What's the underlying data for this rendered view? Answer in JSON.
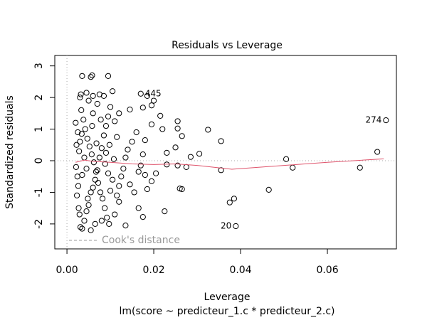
{
  "chart_data": {
    "type": "scatter",
    "title": "Residuals vs Leverage",
    "x_label": "Leverage",
    "y_label": "Standardized residuals",
    "subtitle": "lm(score ~ predicteur_1.c * predicteur_2.c)",
    "legend": "Cook's distance",
    "xlim": [
      -0.0028,
      0.0759
    ],
    "ylim": [
      -2.79,
      3.33
    ],
    "xticks": [
      {
        "value": 0,
        "label": "0.00"
      },
      {
        "value": 0.02,
        "label": "0.02"
      },
      {
        "value": 0.04,
        "label": "0.04"
      },
      {
        "value": 0.06,
        "label": "0.06"
      }
    ],
    "yticks": [
      -2,
      -1,
      0,
      1,
      2,
      3
    ],
    "x": [
      0.0035,
      0.0055,
      0.0058,
      0.0095,
      0.003,
      0.0032,
      0.0045,
      0.006,
      0.0075,
      0.0085,
      0.0105,
      0.017,
      0.0185,
      0.02,
      0.0195,
      0.0145,
      0.0175,
      0.0215,
      0.0195,
      0.022,
      0.0255,
      0.0255,
      0.0265,
      0.0325,
      0.0355,
      0.025,
      0.023,
      0.0305,
      0.0285,
      0.0505,
      0.0715,
      0.0735,
      0.0255,
      0.023,
      0.0275,
      0.0355,
      0.052,
      0.0675,
      0.018,
      0.0205,
      0.0195,
      0.026,
      0.0265,
      0.0465,
      0.0385,
      0.0375,
      0.0225,
      0.0175,
      0.0135,
      0.0389,
      0.0165,
      0.012,
      0.002,
      0.0025,
      0.0022,
      0.0028,
      0.0021,
      0.0024,
      0.0026,
      0.0023,
      0.0027,
      0.0029,
      0.0031,
      0.0035,
      0.004,
      0.0045,
      0.005,
      0.0055,
      0.006,
      0.0065,
      0.007,
      0.0075,
      0.008,
      0.0085,
      0.009,
      0.0095,
      0.01,
      0.0033,
      0.0038,
      0.0042,
      0.0047,
      0.0052,
      0.0057,
      0.0062,
      0.0067,
      0.0072,
      0.0077,
      0.0082,
      0.0087,
      0.0092,
      0.0097,
      0.011,
      0.0115,
      0.012,
      0.0125,
      0.013,
      0.0135,
      0.014,
      0.015,
      0.016,
      0.011,
      0.0115,
      0.012,
      0.0105,
      0.01,
      0.0145,
      0.0155,
      0.0165,
      0.017,
      0.0175,
      0.018,
      0.0185,
      0.004,
      0.0045,
      0.0035,
      0.003,
      0.005,
      0.006,
      0.007,
      0.008,
      0.0065,
      0.0055,
      0.009,
      0.0095,
      0.0034,
      0.0048,
      0.0058,
      0.0068,
      0.0078,
      0.0088,
      0.0098,
      0.0108
    ],
    "y": [
      2.68,
      2.65,
      2.7,
      2.68,
      2.0,
      2.1,
      2.15,
      2.05,
      2.1,
      2.05,
      2.2,
      2.12,
      2.05,
      1.9,
      1.75,
      1.62,
      1.68,
      1.42,
      1.15,
      1.0,
      1.25,
      1.02,
      0.78,
      0.98,
      0.62,
      0.42,
      0.25,
      0.22,
      0.12,
      0.05,
      0.28,
      1.28,
      -0.15,
      -0.12,
      -0.2,
      -0.3,
      -0.22,
      -0.22,
      -0.45,
      -0.4,
      -0.65,
      -0.88,
      -0.9,
      -0.92,
      -1.2,
      -1.32,
      -1.6,
      -1.78,
      -2.05,
      -2.07,
      -1.5,
      -1.3,
      1.2,
      0.9,
      0.5,
      0.3,
      -0.2,
      -0.5,
      -0.8,
      -1.1,
      -1.5,
      -1.7,
      -2.1,
      -2.15,
      -1.9,
      -1.6,
      -1.4,
      -1.0,
      -0.85,
      -0.6,
      -0.3,
      0.1,
      0.4,
      0.8,
      1.1,
      1.4,
      1.7,
      1.6,
      1.3,
      1.0,
      0.7,
      0.45,
      0.2,
      -0.05,
      -0.35,
      -0.7,
      -1.0,
      -1.2,
      -1.5,
      -1.8,
      -2.0,
      -1.7,
      -1.1,
      -0.8,
      -0.5,
      -0.25,
      0.1,
      0.35,
      0.6,
      0.9,
      1.25,
      0.75,
      1.5,
      -0.6,
      -0.95,
      -0.75,
      -1.0,
      -0.35,
      -0.15,
      0.2,
      0.65,
      -0.9,
      0.1,
      -0.25,
      -0.45,
      0.6,
      1.9,
      1.5,
      1.8,
      -1.9,
      -2.0,
      -2.2,
      0.25,
      -0.4,
      0.85,
      -1.2,
      1.1,
      0.55,
      1.3,
      -0.1,
      0.5,
      0.05
    ],
    "annotations": [
      {
        "text": "445",
        "x": 0.017,
        "y": 2.12
      },
      {
        "text": "274",
        "x": 0.0735,
        "y": 1.28
      },
      {
        "text": "20",
        "x": 0.0389,
        "y": -2.07
      }
    ],
    "smooth": {
      "color": "#df536b",
      "x": [
        0.002,
        0.004,
        0.006,
        0.01,
        0.015,
        0.02,
        0.025,
        0.03,
        0.038,
        0.05,
        0.06,
        0.073
      ],
      "y": [
        -0.05,
        0.02,
        -0.02,
        -0.05,
        -0.1,
        -0.12,
        -0.1,
        -0.15,
        -0.27,
        -0.15,
        -0.05,
        0.06
      ]
    },
    "color": "#000000"
  }
}
